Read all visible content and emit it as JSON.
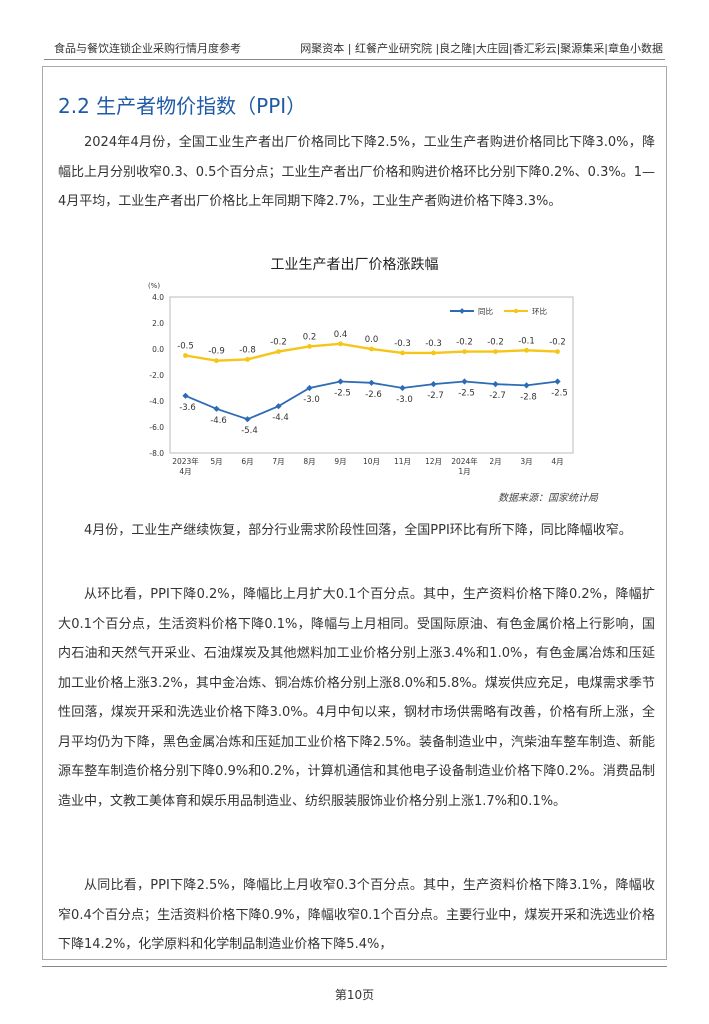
{
  "header": {
    "left": "食品与餐饮连锁企业采购行情月度参考",
    "right": "网聚资本 | 红餐产业研究院 |良之隆|大庄园|香汇彩云|聚源集采|章鱼小数据"
  },
  "section_title": "2.2  生产者物价指数（PPI）",
  "para1": "2024年4月份，全国工业生产者出厂价格同比下降2.5%，工业生产者购进价格同比下降3.0%，降幅比上月分别收窄0.3、0.5个百分点；工业生产者出厂价格和购进价格环比分别下降0.2%、0.3%。1—4月平均，工业生产者出厂价格比上年同期下降2.7%，工业生产者购进价格下降3.3%。",
  "chart_title": "工业生产者出厂价格涨跌幅",
  "source_note": "数据来源：国家统计局",
  "para2": "4月份，工业生产继续恢复，部分行业需求阶段性回落，全国PPI环比有所下降，同比降幅收窄。",
  "para3": "从环比看，PPI下降0.2%，降幅比上月扩大0.1个百分点。其中，生产资料价格下降0.2%，降幅扩大0.1个百分点，生活资料价格下降0.1%，降幅与上月相同。受国际原油、有色金属价格上行影响，国内石油和天然气开采业、石油煤炭及其他燃料加工业价格分别上涨3.4%和1.0%，有色金属冶炼和压延加工业价格上涨3.2%，其中金冶炼、铜冶炼价格分别上涨8.0%和5.8%。煤炭供应充足，电煤需求季节性回落，煤炭开采和洗选业价格下降3.0%。4月中旬以来，钢材市场供需略有改善，价格有所上涨，全月平均仍为下降，黑色金属冶炼和压延加工业价格下降2.5%。装备制造业中，汽柴油车整车制造、新能源车整车制造价格分别下降0.9%和0.2%，计算机通信和其他电子设备制造业价格下降0.2%。消费品制造业中，文教工美体育和娱乐用品制造业、纺织服装服饰业价格分别上涨1.7%和0.1%。",
  "para4": "从同比看，PPI下降2.5%，降幅比上月收窄0.3个百分点。其中，生产资料价格下降3.1%，降幅收窄0.4个百分点；生活资料价格下降0.9%，降幅收窄0.1个百分点。主要行业中，煤炭开采和洗选业价格下降14.2%，化学原料和化学制品制造业价格下降5.4%，",
  "page_number": "第10页",
  "chart_data": {
    "type": "line",
    "ylabel": "(%)",
    "ylim": [
      -8.0,
      4.0
    ],
    "yticks": [
      "4.0",
      "2.0",
      "0.0",
      "-2.0",
      "-4.0",
      "-6.0",
      "-8.0"
    ],
    "categories": [
      [
        "2023年",
        "4月"
      ],
      [
        "5月"
      ],
      [
        "6月"
      ],
      [
        "7月"
      ],
      [
        "8月"
      ],
      [
        "9月"
      ],
      [
        "10月"
      ],
      [
        "11月"
      ],
      [
        "12月"
      ],
      [
        "2024年",
        "1月"
      ],
      [
        "2月"
      ],
      [
        "3月"
      ],
      [
        "4月"
      ]
    ],
    "legend_position": "top-right",
    "grid": false,
    "series": [
      {
        "name": "同比",
        "color": "#2e6bb5",
        "values": [
          -3.6,
          -4.6,
          -5.4,
          -4.4,
          -3.0,
          -2.5,
          -2.6,
          -3.0,
          -2.7,
          -2.5,
          -2.7,
          -2.8,
          -2.5
        ],
        "labels": [
          "-3.6",
          "-4.6",
          "-5.4",
          "-4.4",
          "-3.0",
          "-2.5",
          "-2.6",
          "-3.0",
          "-2.7",
          "-2.5",
          "-2.7",
          "-2.8",
          "-2.5"
        ]
      },
      {
        "name": "环比",
        "color": "#f5c518",
        "values": [
          -0.5,
          -0.9,
          -0.8,
          -0.2,
          0.2,
          0.4,
          0.0,
          -0.3,
          -0.3,
          -0.2,
          -0.2,
          -0.1,
          -0.2
        ],
        "labels": [
          "-0.5",
          "-0.9",
          "-0.8",
          "-0.2",
          "0.2",
          "0.4",
          "0.0",
          "-0.3",
          "-0.3",
          "-0.2",
          "-0.2",
          "-0.1",
          "-0.2"
        ]
      }
    ]
  }
}
